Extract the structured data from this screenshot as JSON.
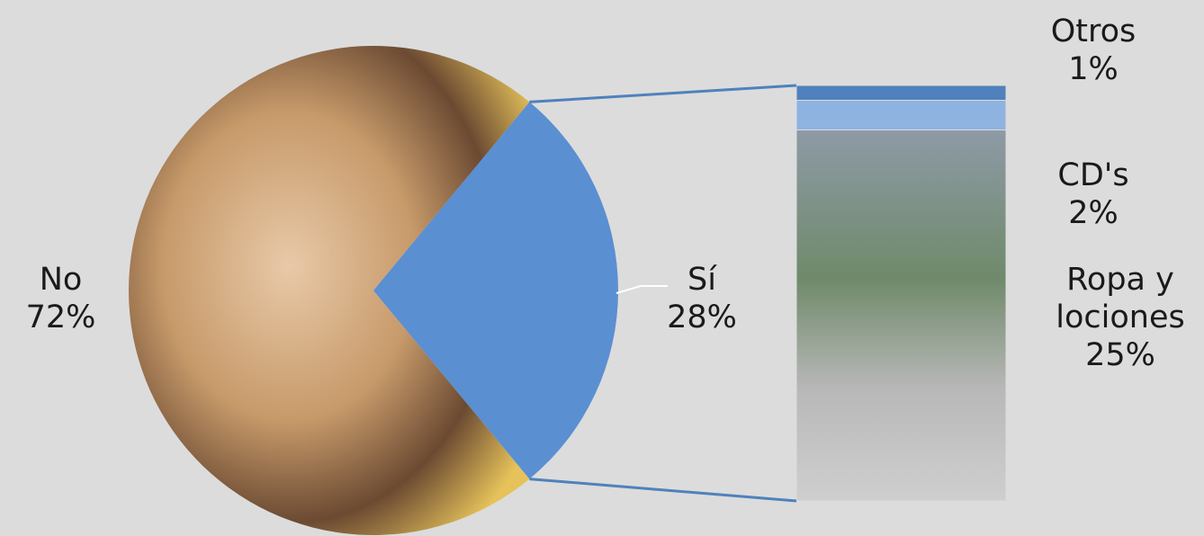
{
  "chart_data": {
    "type": "pie",
    "categories": [
      "No",
      "Sí"
    ],
    "values": [
      72,
      28
    ],
    "value_labels": [
      "72%",
      "28%"
    ],
    "colors": [
      "#b98f55",
      "#5a8fd2"
    ],
    "breakdown": {
      "categories": [
        "Ropa y lociones",
        "CD's",
        "Otros"
      ],
      "values": [
        25,
        2,
        1
      ],
      "value_labels": [
        "25%",
        "2%",
        "1%"
      ],
      "colors": [
        "#7f8a78",
        "#8fb3e0",
        "#4f81bd"
      ]
    }
  }
}
